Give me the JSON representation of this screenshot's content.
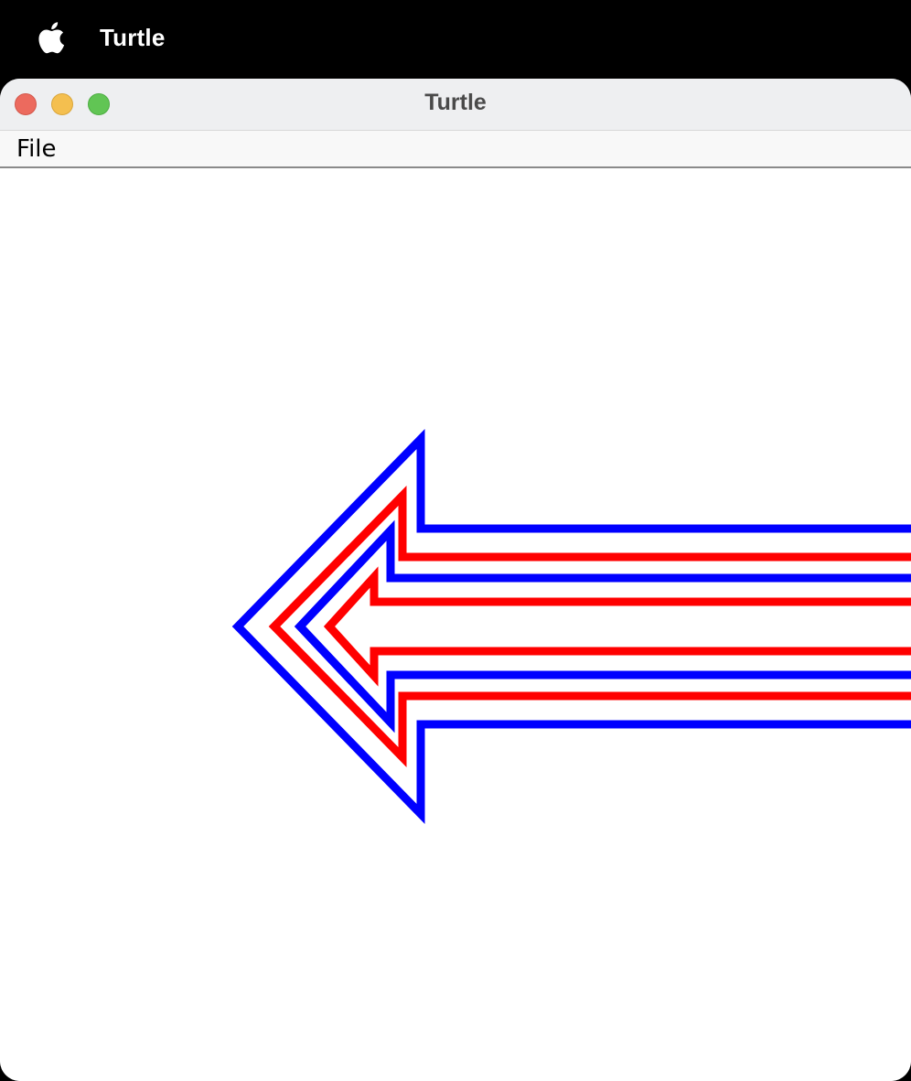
{
  "menubar": {
    "apple_icon": "apple-logo-icon",
    "app_name": "Turtle"
  },
  "window": {
    "title": "Turtle",
    "buttons": {
      "close_color": "#ec6a5e",
      "minimize_color": "#f4bf4f",
      "maximize_color": "#61c554"
    }
  },
  "app_menu": {
    "items": [
      "File"
    ]
  },
  "drawing": {
    "background": "#ffffff",
    "paths": [
      {
        "name": "outer-arrow",
        "color": "#0000ff"
      },
      {
        "name": "second-arrow",
        "color": "#ff0000"
      },
      {
        "name": "third-arrow",
        "color": "#0000ff"
      },
      {
        "name": "inner-arrow",
        "color": "#ff0000"
      }
    ]
  }
}
